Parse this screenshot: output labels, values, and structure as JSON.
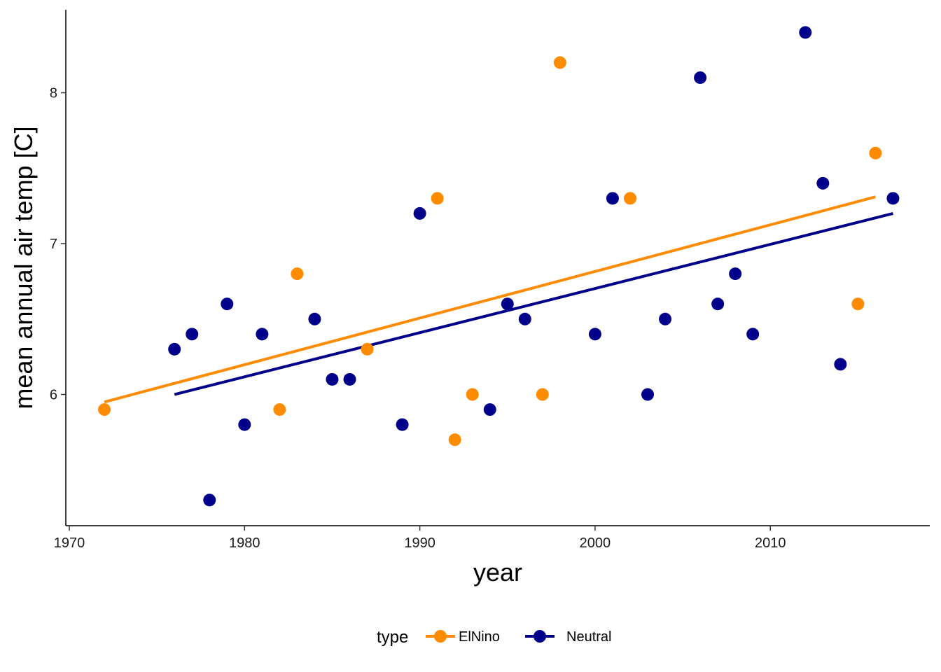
{
  "chart_data": {
    "type": "scatter",
    "title": "",
    "xlabel": "year",
    "ylabel": "mean annual air temp [C]",
    "xlim": [
      1969.8,
      2019.1
    ],
    "ylim": [
      5.13,
      8.55
    ],
    "xticks": [
      1970,
      1980,
      1990,
      2000,
      2010
    ],
    "yticks": [
      6,
      7,
      8
    ],
    "grid": false,
    "legend": {
      "title": "type",
      "position": "bottom",
      "entries": [
        "ElNino",
        "Neutral"
      ]
    },
    "colors": {
      "ElNino": "#ff8c00",
      "Neutral": "#00008b"
    },
    "series": [
      {
        "name": "ElNino",
        "points": [
          [
            1972,
            5.9
          ],
          [
            1982,
            5.9
          ],
          [
            1983,
            6.8
          ],
          [
            1987,
            6.3
          ],
          [
            1991,
            7.3
          ],
          [
            1992,
            5.7
          ],
          [
            1993,
            6.0
          ],
          [
            1997,
            6.0
          ],
          [
            1998,
            8.2
          ],
          [
            2002,
            7.3
          ],
          [
            2015,
            6.6
          ],
          [
            2016,
            7.6
          ]
        ],
        "trend": [
          [
            1972,
            5.95
          ],
          [
            2016,
            7.31
          ]
        ]
      },
      {
        "name": "Neutral",
        "points": [
          [
            1976,
            6.3
          ],
          [
            1977,
            6.4
          ],
          [
            1978,
            5.3
          ],
          [
            1979,
            6.6
          ],
          [
            1980,
            5.8
          ],
          [
            1981,
            6.4
          ],
          [
            1984,
            6.5
          ],
          [
            1985,
            6.1
          ],
          [
            1986,
            6.1
          ],
          [
            1989,
            5.8
          ],
          [
            1990,
            7.2
          ],
          [
            1994,
            5.9
          ],
          [
            1995,
            6.6
          ],
          [
            1996,
            6.5
          ],
          [
            2000,
            6.4
          ],
          [
            2001,
            7.3
          ],
          [
            2003,
            6.0
          ],
          [
            2004,
            6.5
          ],
          [
            2006,
            8.1
          ],
          [
            2007,
            6.6
          ],
          [
            2008,
            6.8
          ],
          [
            2009,
            6.4
          ],
          [
            2012,
            8.4
          ],
          [
            2013,
            7.4
          ],
          [
            2014,
            6.2
          ],
          [
            2017,
            7.3
          ]
        ],
        "trend": [
          [
            1976,
            6.0
          ],
          [
            2017,
            7.2
          ]
        ]
      }
    ]
  }
}
